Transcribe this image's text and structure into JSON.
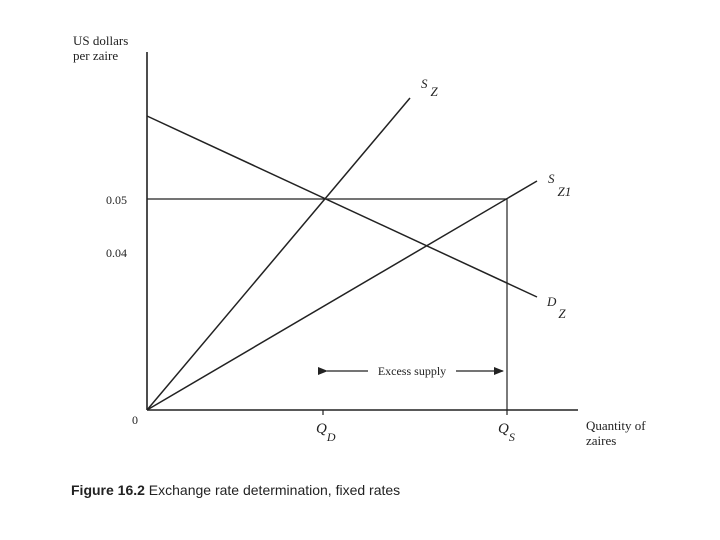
{
  "diagram": {
    "y_axis_label_line1": "US dollars",
    "y_axis_label_line2": "per zaire",
    "x_axis_label_line1": "Quantity of",
    "x_axis_label_line2": "zaires",
    "origin_label": "0",
    "y_ticks": [
      "0.05",
      "0.04"
    ],
    "x_ticks": [
      {
        "main": "Q",
        "sub": "D"
      },
      {
        "main": "Q",
        "sub": "S"
      }
    ],
    "curves": [
      {
        "main": "S",
        "sub": "Z"
      },
      {
        "main": "S",
        "sub": "Z1"
      },
      {
        "main": "D",
        "sub": "Z"
      }
    ],
    "annotation": "Excess supply"
  },
  "caption": {
    "label": "Figure 16.2",
    "text": " Exchange rate determination, fixed rates"
  }
}
